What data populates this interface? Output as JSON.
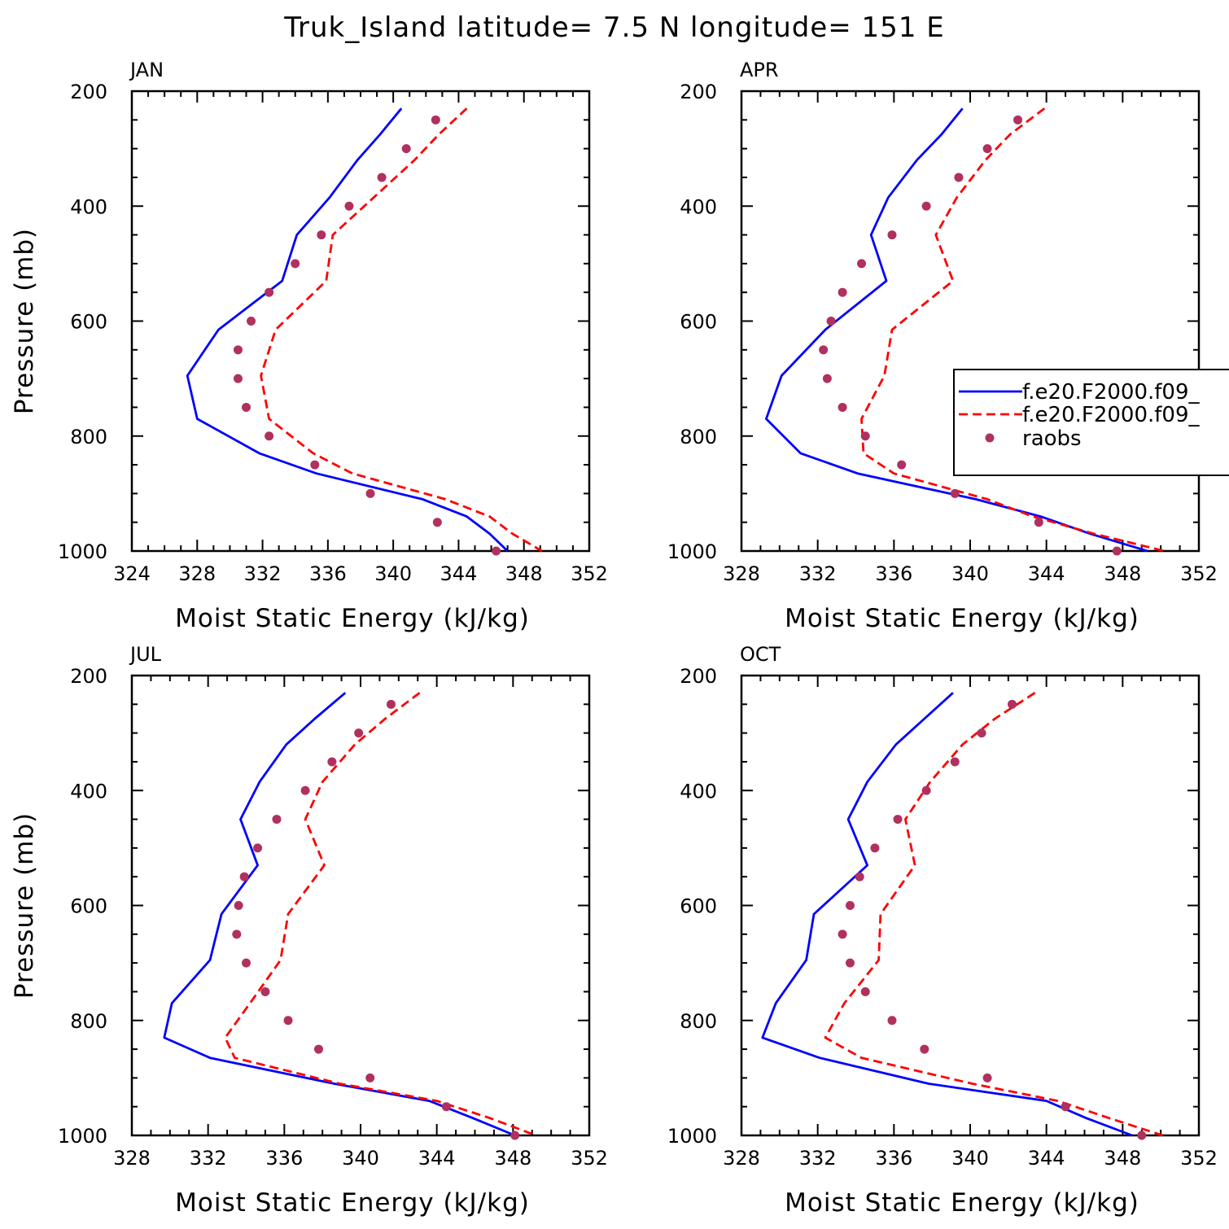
{
  "title": "Truk_Island  latitude= 7.5 N longitude= 151 E",
  "colors": {
    "model_a": "#0000ff",
    "model_b": "#ff0000",
    "raobs": "#b03060",
    "axis": "#000000"
  },
  "legend": {
    "entries": [
      {
        "label": "f.e20.F2000.f09_",
        "style": "solid"
      },
      {
        "label": "f.e20.F2000.f09_",
        "style": "dashed"
      },
      {
        "label": "raobs",
        "style": "markers"
      }
    ]
  },
  "chart_data": [
    {
      "type": "line",
      "panel": "JAN",
      "xlabel": "Moist Static Energy (kJ/kg)",
      "ylabel": "Pressure (mb)",
      "xlim": [
        324,
        352
      ],
      "xticks": [
        324,
        328,
        332,
        336,
        340,
        344,
        348,
        352
      ],
      "ylim": [
        200,
        1000
      ],
      "yticks": [
        200,
        400,
        600,
        800,
        1000
      ],
      "y_inverted": true,
      "series": [
        {
          "style": "solid",
          "x": [
            340.5,
            339.2,
            337.8,
            336.1,
            334.1,
            333.2,
            329.3,
            327.4,
            328.0,
            331.8,
            335.3,
            341.8,
            344.5,
            345.9,
            347.0
          ],
          "y": [
            230,
            275,
            320,
            385,
            450,
            530,
            615,
            695,
            770,
            830,
            865,
            910,
            940,
            970,
            1000
          ]
        },
        {
          "style": "dashed",
          "x": [
            344.5,
            342.8,
            341.3,
            338.8,
            336.3,
            335.9,
            332.8,
            331.9,
            332.4,
            335.1,
            337.5,
            343.2,
            345.9,
            347.3,
            349.1
          ],
          "y": [
            230,
            275,
            320,
            385,
            450,
            530,
            615,
            695,
            770,
            830,
            865,
            910,
            940,
            970,
            1000
          ]
        },
        {
          "style": "markers",
          "x": [
            342.6,
            340.8,
            339.3,
            337.3,
            335.6,
            334.0,
            332.4,
            331.3,
            330.5,
            330.5,
            331.0,
            332.4,
            335.2,
            338.6,
            342.7,
            346.3
          ],
          "y": [
            250,
            300,
            350,
            400,
            450,
            500,
            550,
            600,
            650,
            700,
            750,
            800,
            850,
            900,
            950,
            1000
          ]
        }
      ]
    },
    {
      "type": "line",
      "panel": "APR",
      "xlabel": "Moist Static Energy (kJ/kg)",
      "ylabel": "",
      "xlim": [
        328,
        352
      ],
      "xticks": [
        328,
        332,
        336,
        340,
        344,
        348,
        352
      ],
      "ylim": [
        200,
        1000
      ],
      "yticks": [
        200,
        400,
        600,
        800,
        1000
      ],
      "y_inverted": true,
      "series": [
        {
          "style": "solid",
          "x": [
            339.6,
            338.5,
            337.2,
            335.7,
            334.8,
            335.6,
            332.4,
            330.1,
            329.3,
            331.1,
            334.1,
            340.3,
            343.7,
            346.3,
            349.3
          ],
          "y": [
            230,
            275,
            320,
            385,
            450,
            530,
            615,
            695,
            770,
            830,
            865,
            910,
            940,
            970,
            1000
          ]
        },
        {
          "style": "dashed",
          "x": [
            343.9,
            342.1,
            340.8,
            339.3,
            338.2,
            339.1,
            335.9,
            335.5,
            334.3,
            334.4,
            336.0,
            340.9,
            343.3,
            346.5,
            350.2
          ],
          "y": [
            230,
            275,
            320,
            385,
            450,
            530,
            615,
            695,
            770,
            830,
            865,
            910,
            940,
            970,
            1000
          ]
        },
        {
          "style": "markers",
          "x": [
            342.5,
            340.9,
            339.4,
            337.7,
            335.9,
            334.3,
            333.3,
            332.7,
            332.3,
            332.5,
            333.3,
            334.5,
            336.4,
            339.2,
            343.6,
            347.7
          ],
          "y": [
            250,
            300,
            350,
            400,
            450,
            500,
            550,
            600,
            650,
            700,
            750,
            800,
            850,
            900,
            950,
            1000
          ]
        }
      ]
    },
    {
      "type": "line",
      "panel": "JUL",
      "xlabel": "Moist Static Energy (kJ/kg)",
      "ylabel": "Pressure (mb)",
      "xlim": [
        328,
        352
      ],
      "xticks": [
        328,
        332,
        336,
        340,
        344,
        348,
        352
      ],
      "ylim": [
        200,
        1000
      ],
      "yticks": [
        200,
        400,
        600,
        800,
        1000
      ],
      "y_inverted": true,
      "series": [
        {
          "style": "solid",
          "x": [
            339.2,
            337.6,
            336.1,
            334.7,
            333.7,
            334.6,
            332.7,
            332.1,
            330.1,
            329.7,
            332.1,
            338.6,
            343.6,
            345.9,
            348.1
          ],
          "y": [
            230,
            275,
            320,
            385,
            450,
            530,
            615,
            695,
            770,
            830,
            865,
            910,
            940,
            970,
            1000
          ]
        },
        {
          "style": "dashed",
          "x": [
            343.1,
            341.3,
            339.7,
            338.0,
            337.1,
            338.1,
            336.2,
            335.8,
            334.2,
            332.9,
            333.4,
            338.9,
            344.0,
            346.8,
            349.2
          ],
          "y": [
            230,
            275,
            320,
            385,
            450,
            530,
            615,
            695,
            770,
            830,
            865,
            910,
            940,
            970,
            1000
          ]
        },
        {
          "style": "markers",
          "x": [
            341.6,
            339.9,
            338.5,
            337.1,
            335.6,
            334.6,
            333.9,
            333.6,
            333.5,
            334.0,
            335.0,
            336.2,
            337.8,
            340.5,
            344.5,
            348.1
          ],
          "y": [
            250,
            300,
            350,
            400,
            450,
            500,
            550,
            600,
            650,
            700,
            750,
            800,
            850,
            900,
            950,
            1000
          ]
        }
      ]
    },
    {
      "type": "line",
      "panel": "OCT",
      "xlabel": "Moist Static Energy (kJ/kg)",
      "ylabel": "",
      "xlim": [
        328,
        352
      ],
      "xticks": [
        328,
        332,
        336,
        340,
        344,
        348,
        352
      ],
      "ylim": [
        200,
        1000
      ],
      "yticks": [
        200,
        400,
        600,
        800,
        1000
      ],
      "y_inverted": true,
      "series": [
        {
          "style": "solid",
          "x": [
            339.1,
            337.6,
            336.1,
            334.6,
            333.6,
            334.6,
            331.8,
            331.4,
            329.8,
            329.1,
            332.1,
            337.8,
            344.0,
            346.1,
            348.5
          ],
          "y": [
            230,
            275,
            320,
            385,
            450,
            530,
            615,
            695,
            770,
            830,
            865,
            910,
            940,
            970,
            1000
          ]
        },
        {
          "style": "dashed",
          "x": [
            343.4,
            341.3,
            339.6,
            337.9,
            336.6,
            337.1,
            335.3,
            335.2,
            333.4,
            332.4,
            334.3,
            340.1,
            344.6,
            347.3,
            350.1
          ],
          "y": [
            230,
            275,
            320,
            385,
            450,
            530,
            615,
            695,
            770,
            830,
            865,
            910,
            940,
            970,
            1000
          ]
        },
        {
          "style": "markers",
          "x": [
            342.2,
            340.6,
            339.2,
            337.7,
            336.2,
            335.0,
            334.2,
            333.7,
            333.3,
            333.7,
            334.5,
            335.9,
            337.6,
            340.9,
            345.0,
            349.0
          ],
          "y": [
            250,
            300,
            350,
            400,
            450,
            500,
            550,
            600,
            650,
            700,
            750,
            800,
            850,
            900,
            950,
            1000
          ]
        }
      ]
    }
  ]
}
